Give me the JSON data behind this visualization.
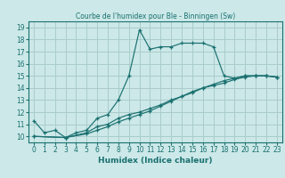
{
  "title": "Courbe de l'humidex pour Ble - Binningen (Sw)",
  "xlabel": "Humidex (Indice chaleur)",
  "bg_color": "#cce8e8",
  "grid_color": "#aacccc",
  "line_color": "#1a7070",
  "xlim": [
    -0.5,
    23.5
  ],
  "ylim": [
    9.5,
    19.5
  ],
  "xticks": [
    0,
    1,
    2,
    3,
    4,
    5,
    6,
    7,
    8,
    9,
    10,
    11,
    12,
    13,
    14,
    15,
    16,
    17,
    18,
    19,
    20,
    21,
    22,
    23
  ],
  "yticks": [
    10,
    11,
    12,
    13,
    14,
    15,
    16,
    17,
    18,
    19
  ],
  "line1_x": [
    0,
    1,
    2,
    3,
    4,
    5,
    6,
    7,
    8,
    9,
    10,
    11,
    12,
    13,
    14,
    15,
    16,
    17,
    18,
    19,
    20,
    21,
    22,
    23
  ],
  "line1_y": [
    11.3,
    10.3,
    10.5,
    9.9,
    10.3,
    10.5,
    11.5,
    11.8,
    13.0,
    15.0,
    18.8,
    17.2,
    17.4,
    17.4,
    17.7,
    17.7,
    17.7,
    17.4,
    15.0,
    14.8,
    15.0,
    15.0,
    15.0,
    14.9
  ],
  "line2_x": [
    0,
    3,
    5,
    6,
    7,
    8,
    9,
    10,
    11,
    12,
    13,
    14,
    15,
    16,
    17,
    18,
    19,
    20,
    21,
    22,
    23
  ],
  "line2_y": [
    10.0,
    9.9,
    10.3,
    10.8,
    11.0,
    11.5,
    11.8,
    12.0,
    12.3,
    12.6,
    13.0,
    13.3,
    13.6,
    14.0,
    14.3,
    14.6,
    14.8,
    15.0,
    15.0,
    15.0,
    14.9
  ],
  "line3_x": [
    0,
    3,
    5,
    6,
    7,
    8,
    9,
    10,
    11,
    12,
    13,
    14,
    15,
    16,
    17,
    18,
    19,
    20,
    21,
    22,
    23
  ],
  "line3_y": [
    10.0,
    9.9,
    10.2,
    10.5,
    10.8,
    11.2,
    11.5,
    11.8,
    12.1,
    12.5,
    12.9,
    13.3,
    13.7,
    14.0,
    14.2,
    14.4,
    14.7,
    14.9,
    15.0,
    15.0,
    14.9
  ],
  "tick_fontsize": 5.5,
  "xlabel_fontsize": 6.5,
  "title_fontsize": 5.5
}
